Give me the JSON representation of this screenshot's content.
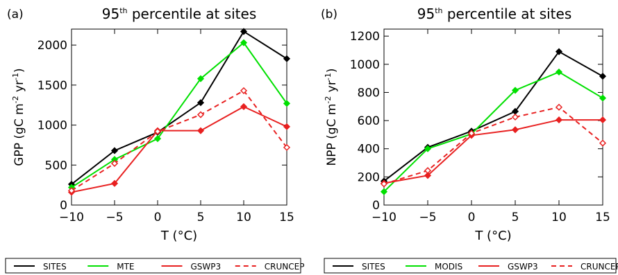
{
  "chart_data": [
    {
      "type": "line",
      "panel_label": "(a)",
      "title": "95th percentile at sites",
      "title_main": "95",
      "title_sup": "th",
      "title_rest": " percentile at sites",
      "xlabel": "T (°C)",
      "ylabel": "GPP (gC m-2 yr-1)",
      "ylabel_parts": {
        "pre": "GPP (gC m",
        "sup1": "-2",
        "mid": " yr",
        "sup2": "-1",
        "post": ")"
      },
      "x": [
        -10,
        -5,
        0,
        5,
        10,
        15
      ],
      "xlim": [
        -10,
        15
      ],
      "ylim": [
        0,
        2200
      ],
      "xticks": [
        -10,
        -5,
        0,
        5,
        10,
        15
      ],
      "xtick_labels": [
        "−10",
        "−5",
        "0",
        "5",
        "10",
        "15"
      ],
      "yticks": [
        0,
        500,
        1000,
        1500,
        2000
      ],
      "ytick_labels": [
        "0",
        "500",
        "1000",
        "1500",
        "2000"
      ],
      "series": [
        {
          "name": "SITES",
          "color": "#000000",
          "dash": "solid",
          "marker": "filled",
          "values": [
            260,
            680,
            910,
            1280,
            2170,
            1830
          ]
        },
        {
          "name": "MTE",
          "color": "#00e000",
          "dash": "solid",
          "marker": "filled",
          "values": [
            220,
            570,
            830,
            1580,
            2030,
            1270
          ]
        },
        {
          "name": "GSWP3",
          "color": "#e82020",
          "dash": "solid",
          "marker": "filled",
          "values": [
            160,
            270,
            930,
            930,
            1230,
            980
          ]
        },
        {
          "name": "CRUNCEP",
          "color": "#e82020",
          "dash": "dashed",
          "marker": "open",
          "values": [
            180,
            520,
            920,
            1130,
            1430,
            720
          ]
        }
      ],
      "legend": [
        "SITES",
        "MTE",
        "GSWP3",
        "CRUNCEP"
      ],
      "legend_placement": "bottom"
    },
    {
      "type": "line",
      "panel_label": "(b)",
      "title": "95th percentile at sites",
      "title_main": "95",
      "title_sup": "th",
      "title_rest": " percentile at sites",
      "xlabel": "T (°C)",
      "ylabel": "NPP (gC m-2 yr-1)",
      "ylabel_parts": {
        "pre": "NPP (gC m",
        "sup1": "-2",
        "mid": " yr",
        "sup2": "-1",
        "post": ")"
      },
      "x": [
        -10,
        -5,
        0,
        5,
        10,
        15
      ],
      "xlim": [
        -10,
        15
      ],
      "ylim": [
        0,
        1250
      ],
      "xticks": [
        -10,
        -5,
        0,
        5,
        10,
        15
      ],
      "xtick_labels": [
        "−10",
        "−5",
        "0",
        "5",
        "10",
        "15"
      ],
      "yticks": [
        0,
        200,
        400,
        600,
        800,
        1000,
        1200
      ],
      "ytick_labels": [
        "0",
        "200",
        "400",
        "600",
        "800",
        "1000",
        "1200"
      ],
      "series": [
        {
          "name": "SITES",
          "color": "#000000",
          "dash": "solid",
          "marker": "filled",
          "values": [
            170,
            410,
            525,
            665,
            1090,
            915
          ]
        },
        {
          "name": "MODIS",
          "color": "#00e000",
          "dash": "solid",
          "marker": "filled",
          "values": [
            95,
            400,
            505,
            815,
            945,
            760
          ]
        },
        {
          "name": "GSWP3",
          "color": "#e82020",
          "dash": "solid",
          "marker": "filled",
          "values": [
            155,
            210,
            495,
            535,
            605,
            605
          ]
        },
        {
          "name": "CRUNCEP",
          "color": "#e82020",
          "dash": "dashed",
          "marker": "open",
          "values": [
            150,
            245,
            510,
            625,
            695,
            440
          ]
        }
      ],
      "legend": [
        "SITES",
        "MODIS",
        "GSWP3",
        "CRUNCEP"
      ],
      "legend_placement": "bottom"
    }
  ]
}
